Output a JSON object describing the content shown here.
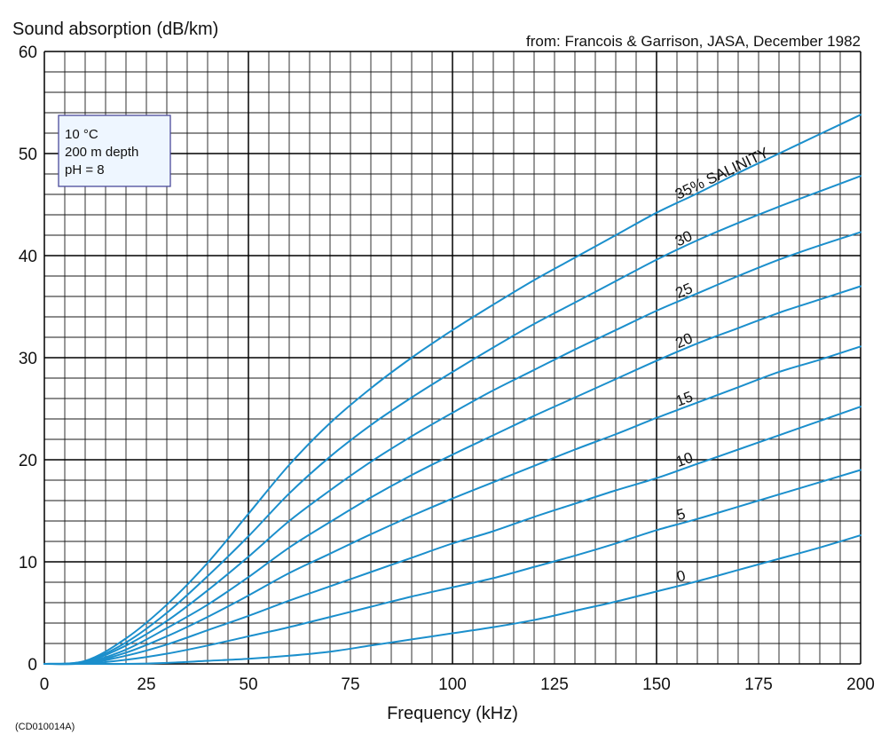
{
  "chart_data": {
    "type": "line",
    "title": "",
    "ylabel": "Sound absorption  (dB/km)",
    "xlabel": "Frequency (kHz)",
    "source_note": "from: Francois & Garrison, JASA, December 1982",
    "figure_code": "(CD010014A)",
    "conditions": [
      "10 °C",
      "200 m depth",
      "pH = 8"
    ],
    "xlim": [
      0,
      200
    ],
    "ylim": [
      0,
      60
    ],
    "x_ticks": [
      0,
      25,
      50,
      75,
      100,
      125,
      150,
      175,
      200
    ],
    "y_ticks": [
      0,
      10,
      20,
      30,
      40,
      50,
      60
    ],
    "minor_grid": {
      "x_step": 5,
      "y_step": 2
    },
    "major_grid": {
      "x_step": 50,
      "y_step": 10
    },
    "line_color": "#1b8fcc",
    "x": [
      0,
      10,
      20,
      30,
      40,
      50,
      60,
      70,
      80,
      90,
      100,
      110,
      120,
      130,
      140,
      150,
      160,
      170,
      180,
      190,
      200
    ],
    "series": [
      {
        "name": "35%",
        "label": "35%  SALINITY",
        "values": [
          0,
          0.3,
          2.5,
          5.8,
          9.9,
          14.7,
          19.5,
          23.6,
          27.0,
          30.0,
          32.7,
          35.2,
          37.6,
          39.8,
          42.0,
          44.2,
          46.1,
          48.1,
          50.0,
          51.9,
          53.8
        ]
      },
      {
        "name": "30",
        "label": "30",
        "values": [
          0,
          0.25,
          2.1,
          5.0,
          8.6,
          12.5,
          16.7,
          20.3,
          23.4,
          26.1,
          28.6,
          31.0,
          33.3,
          35.4,
          37.5,
          39.6,
          41.5,
          43.2,
          44.8,
          46.3,
          47.8
        ]
      },
      {
        "name": "25",
        "label": "25",
        "values": [
          0,
          0.2,
          1.8,
          4.2,
          7.2,
          10.5,
          14.0,
          17.0,
          19.8,
          22.3,
          24.6,
          26.8,
          28.8,
          30.8,
          32.7,
          34.6,
          36.3,
          38.0,
          39.6,
          41.0,
          42.3
        ]
      },
      {
        "name": "20",
        "label": "20",
        "values": [
          0,
          0.15,
          1.4,
          3.5,
          5.8,
          8.5,
          11.4,
          13.9,
          16.3,
          18.5,
          20.5,
          22.4,
          24.3,
          26.1,
          27.9,
          29.7,
          31.4,
          32.9,
          34.4,
          35.7,
          37.0
        ]
      },
      {
        "name": "15",
        "label": "15",
        "values": [
          0,
          0.1,
          1.1,
          2.7,
          4.6,
          6.7,
          8.9,
          10.8,
          12.7,
          14.5,
          16.2,
          17.8,
          19.4,
          21.0,
          22.5,
          24.1,
          25.6,
          27.1,
          28.6,
          29.8,
          31.1
        ]
      },
      {
        "name": "10",
        "label": "10",
        "values": [
          0,
          0.05,
          0.8,
          1.9,
          3.3,
          4.7,
          6.2,
          7.6,
          9.0,
          10.4,
          11.8,
          13.0,
          14.4,
          15.7,
          17.0,
          18.2,
          19.6,
          21.0,
          22.4,
          23.8,
          25.2
        ]
      },
      {
        "name": "5",
        "label": "5",
        "values": [
          0,
          0.02,
          0.4,
          1.0,
          1.8,
          2.7,
          3.6,
          4.6,
          5.6,
          6.6,
          7.5,
          8.4,
          9.5,
          10.6,
          11.8,
          13.1,
          14.2,
          15.4,
          16.6,
          17.8,
          19.0
        ]
      },
      {
        "name": "0",
        "label": "0",
        "values": [
          0,
          0.0,
          0.0,
          0.1,
          0.3,
          0.5,
          0.8,
          1.2,
          1.8,
          2.4,
          3.0,
          3.6,
          4.3,
          5.2,
          6.1,
          7.1,
          8.1,
          9.2,
          10.3,
          11.4,
          12.6
        ]
      }
    ]
  }
}
